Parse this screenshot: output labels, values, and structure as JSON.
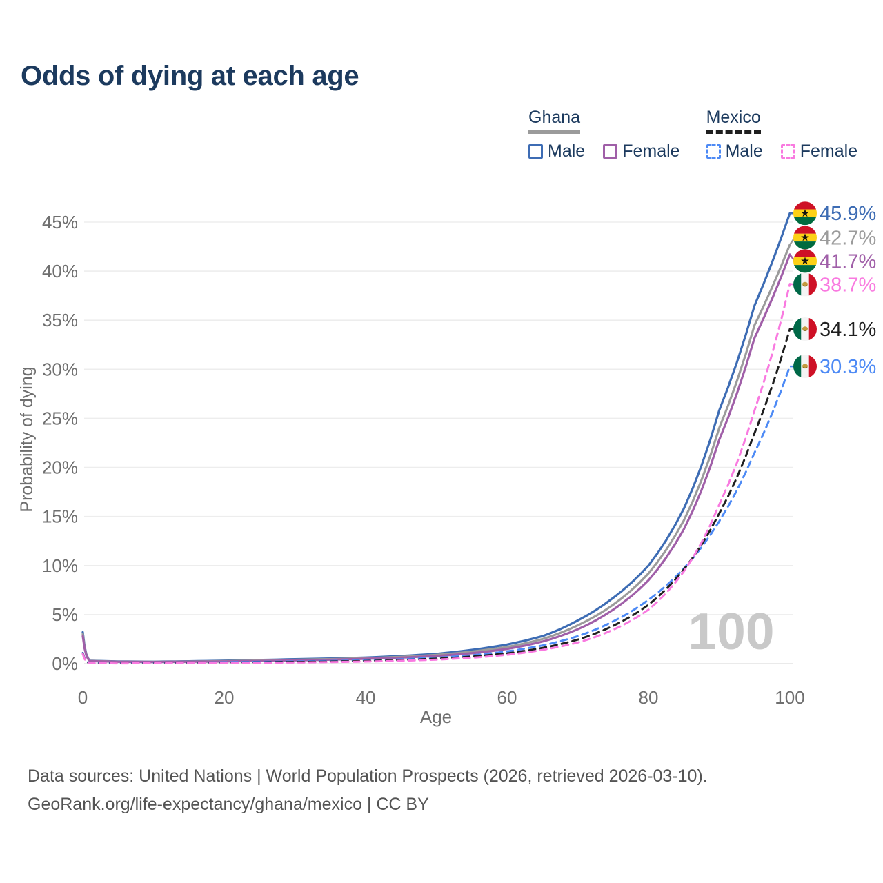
{
  "title": "Odds of dying at each age",
  "legend": {
    "groups": [
      {
        "country": "Ghana",
        "line_style": "solid",
        "underline_color": "#9b9b9b",
        "items": [
          {
            "label": "Male",
            "color": "#3d6cb4"
          },
          {
            "label": "Female",
            "color": "#a05fa8"
          }
        ]
      },
      {
        "country": "Mexico",
        "line_style": "dashed",
        "underline_color": "#1f1f1f",
        "items": [
          {
            "label": "Male",
            "color": "#4d8af5"
          },
          {
            "label": "Female",
            "color": "#f97ae0"
          }
        ]
      }
    ]
  },
  "chart_data": {
    "type": "line",
    "title": "Odds of dying at each age",
    "xlabel": "Age",
    "ylabel": "Probability of dying",
    "xlim": [
      0,
      100
    ],
    "ylim": [
      0,
      46
    ],
    "grid": true,
    "legend_position": "top-right",
    "watermark": "100",
    "x_ticks": [
      0,
      20,
      40,
      60,
      80,
      100
    ],
    "y_ticks": [
      "0%",
      "5%",
      "10%",
      "15%",
      "20%",
      "25%",
      "30%",
      "35%",
      "40%",
      "45%"
    ],
    "x": [
      0,
      1,
      5,
      10,
      15,
      20,
      25,
      30,
      35,
      40,
      45,
      50,
      55,
      60,
      65,
      70,
      75,
      80,
      85,
      90,
      95,
      100
    ],
    "series": [
      {
        "id": "ghana-male",
        "country": "Ghana",
        "sex": "Male",
        "flag": "ghana",
        "color": "#3d6cb4",
        "dashed": false,
        "end_label": "45.9%",
        "values": [
          3.2,
          0.3,
          0.22,
          0.2,
          0.24,
          0.3,
          0.37,
          0.45,
          0.52,
          0.62,
          0.78,
          1.0,
          1.4,
          1.95,
          2.8,
          4.4,
          6.7,
          10.0,
          15.8,
          25.8,
          36.5,
          45.9
        ]
      },
      {
        "id": "ghana-both",
        "country": "Ghana",
        "sex": "Both sexes",
        "flag": "ghana",
        "color": "#9b9b9b",
        "dashed": false,
        "end_label": "42.7%",
        "values": [
          3.0,
          0.28,
          0.2,
          0.18,
          0.21,
          0.26,
          0.32,
          0.39,
          0.46,
          0.55,
          0.69,
          0.89,
          1.22,
          1.7,
          2.5,
          3.9,
          6.0,
          9.2,
          14.6,
          24.0,
          34.5,
          42.7
        ]
      },
      {
        "id": "ghana-female",
        "country": "Ghana",
        "sex": "Female",
        "flag": "ghana",
        "color": "#a05fa8",
        "dashed": false,
        "end_label": "41.7%",
        "values": [
          2.8,
          0.26,
          0.19,
          0.17,
          0.19,
          0.22,
          0.27,
          0.33,
          0.4,
          0.49,
          0.61,
          0.78,
          1.06,
          1.5,
          2.25,
          3.5,
          5.5,
          8.5,
          13.7,
          22.8,
          33.2,
          41.7
        ]
      },
      {
        "id": "mexico-male",
        "country": "Mexico",
        "sex": "Male",
        "flag": "mexico",
        "color": "#4d8af5",
        "dashed": true,
        "end_label": "30.3%",
        "values": [
          1.1,
          0.06,
          0.04,
          0.05,
          0.09,
          0.14,
          0.18,
          0.22,
          0.27,
          0.33,
          0.44,
          0.6,
          0.85,
          1.25,
          1.85,
          2.8,
          4.3,
          6.5,
          9.7,
          14.5,
          21.5,
          30.3
        ]
      },
      {
        "id": "mexico-both",
        "country": "Mexico",
        "sex": "Both sexes",
        "flag": "mexico",
        "color": "#1f1f1f",
        "dashed": true,
        "end_label": "34.1%",
        "values": [
          1.05,
          0.055,
          0.035,
          0.04,
          0.07,
          0.1,
          0.13,
          0.17,
          0.21,
          0.27,
          0.36,
          0.5,
          0.72,
          1.05,
          1.6,
          2.45,
          3.85,
          6.0,
          9.6,
          15.3,
          23.5,
          34.1
        ]
      },
      {
        "id": "mexico-female",
        "country": "Mexico",
        "sex": "Female",
        "flag": "mexico",
        "color": "#f97ae0",
        "dashed": true,
        "end_label": "38.7%",
        "values": [
          1.0,
          0.05,
          0.03,
          0.035,
          0.05,
          0.07,
          0.09,
          0.12,
          0.16,
          0.21,
          0.29,
          0.41,
          0.6,
          0.9,
          1.4,
          2.15,
          3.45,
          5.5,
          9.4,
          16.2,
          25.8,
          38.7
        ]
      }
    ]
  },
  "footer": {
    "line1": "Data sources: United Nations | World Population Prospects (2026, retrieved 2026-03-10).",
    "line2": "GeoRank.org/life-expectancy/ghana/mexico | CC BY"
  },
  "colors": {
    "title": "#1c3a5e",
    "axis_text": "#6f6f6f",
    "gridline": "#ededed",
    "watermark": "#c9c9c9",
    "footer_text": "#545454"
  }
}
